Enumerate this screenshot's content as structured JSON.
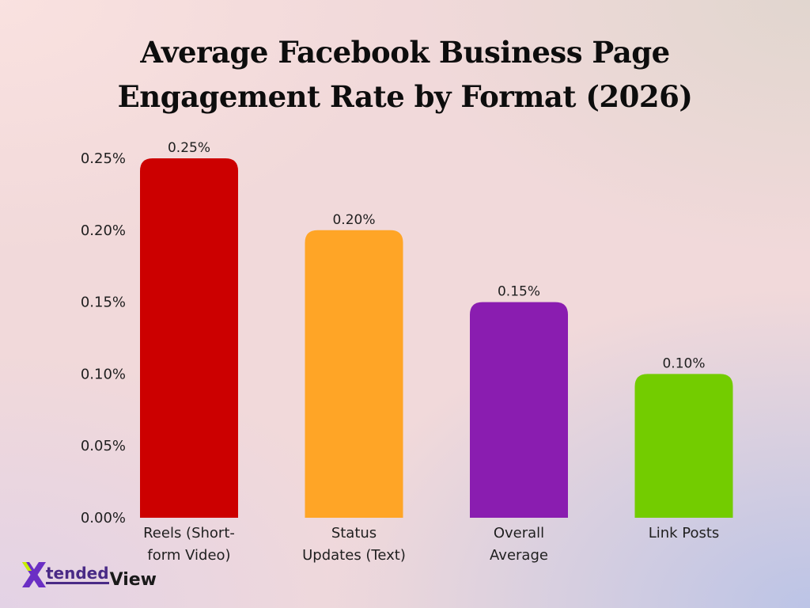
{
  "chart_data": {
    "type": "bar",
    "title_lines": [
      "Average Facebook Business Page",
      "Engagement Rate by Format (2026)"
    ],
    "categories": [
      [
        "Reels (Short-",
        "form Video)"
      ],
      [
        "Status",
        "Updates (Text)"
      ],
      [
        "Overall",
        "Average"
      ],
      [
        "Link Posts"
      ]
    ],
    "values": [
      0.25,
      0.2,
      0.15,
      0.1
    ],
    "value_labels": [
      "0.25%",
      "0.20%",
      "0.15%",
      "0.10%"
    ],
    "bar_colors": [
      "#cc0000",
      "#ffa526",
      "#8a1db0",
      "#73cc00"
    ],
    "ylim": [
      0,
      0.25
    ],
    "yticks": [
      0.0,
      0.05,
      0.1,
      0.15,
      0.2,
      0.25
    ],
    "ytick_labels": [
      "0.00%",
      "0.05%",
      "0.10%",
      "0.15%",
      "0.20%",
      "0.25%"
    ],
    "xlabel": "",
    "ylabel": "",
    "grid": false,
    "legend": "none"
  },
  "logo": {
    "mark": "X",
    "tended": "tended",
    "view": "View",
    "colors": {
      "mark_primary": "#6b2fc4",
      "mark_accent": "#c7f000",
      "text": "#4a2a86"
    }
  }
}
